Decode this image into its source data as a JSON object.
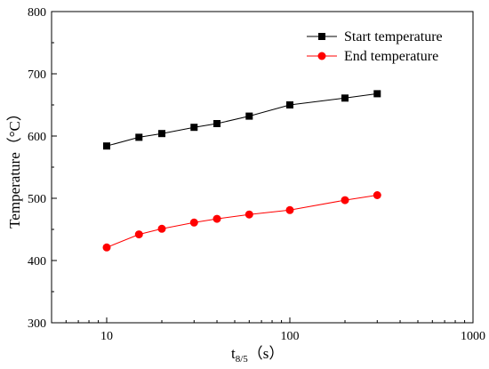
{
  "chart_data": {
    "type": "line",
    "x_scale": "log",
    "xlim": [
      5,
      1000
    ],
    "ylim": [
      300,
      800
    ],
    "x_ticks": [
      10,
      100,
      1000
    ],
    "x_tick_labels": [
      "10",
      "100",
      "1000"
    ],
    "y_ticks": [
      300,
      400,
      500,
      600,
      700,
      800
    ],
    "y_tick_labels": [
      "300",
      "400",
      "500",
      "600",
      "700",
      "800"
    ],
    "xlabel_main": "t",
    "xlabel_sub": "8/5",
    "xlabel_unit": "（s）",
    "ylabel": "Temperature（°C）",
    "legend_position": "top-right",
    "grid": false,
    "series": [
      {
        "name": "Start temperature",
        "color": "#000000",
        "marker": "square",
        "x": [
          10,
          15,
          20,
          30,
          40,
          60,
          100,
          200,
          300
        ],
        "y": [
          584,
          598,
          604,
          614,
          620,
          632,
          650,
          661,
          668
        ]
      },
      {
        "name": "End temperature",
        "color": "#ff0000",
        "marker": "circle",
        "x": [
          10,
          15,
          20,
          30,
          40,
          60,
          100,
          200,
          300
        ],
        "y": [
          421,
          442,
          451,
          461,
          467,
          474,
          481,
          497,
          505
        ]
      }
    ]
  }
}
